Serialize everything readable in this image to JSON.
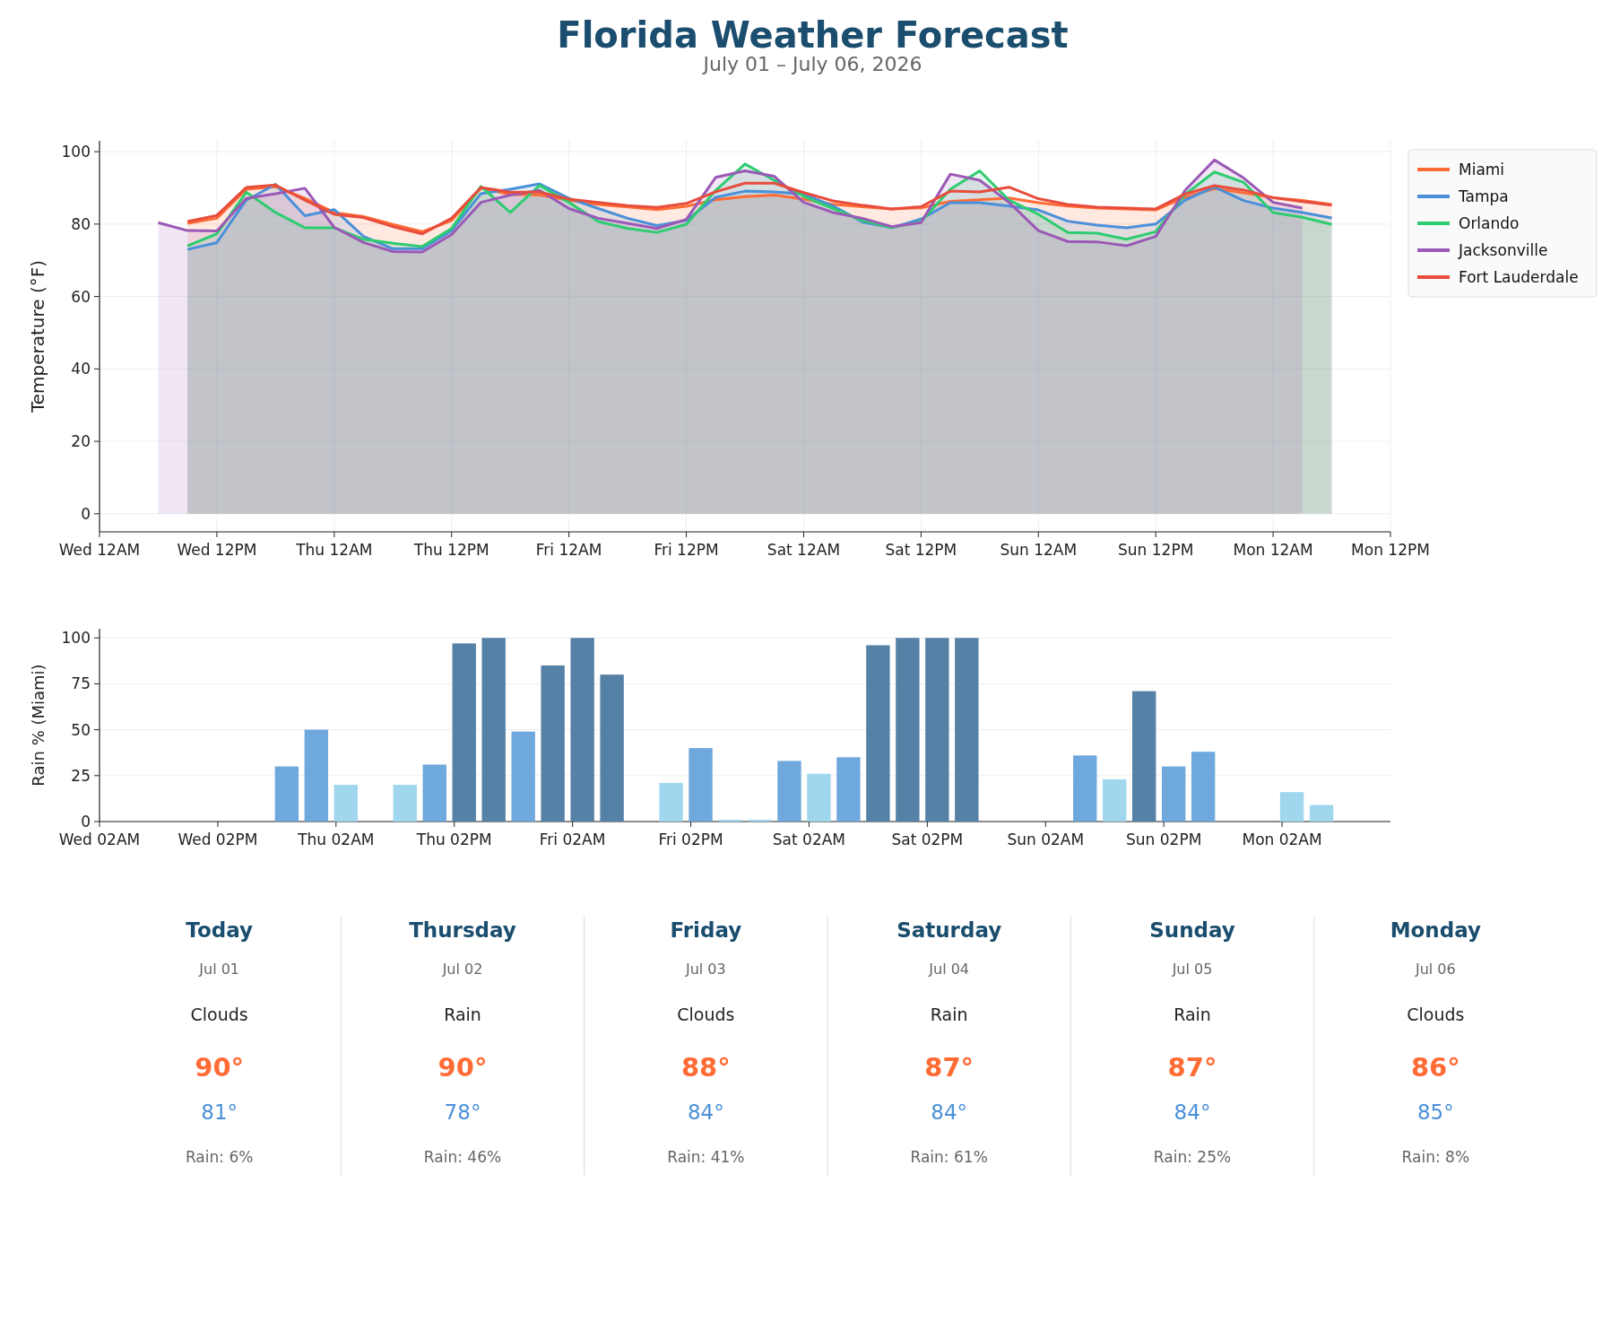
{
  "chart_data": [
    {
      "type": "area",
      "title": "Florida Weather Forecast",
      "subtitle": "July 01 – July 06, 2026",
      "ylabel": "Temperature (°F)",
      "x": [
        "2026-07-01T06:00",
        "2026-07-01T09:00",
        "2026-07-01T12:00",
        "2026-07-01T15:00",
        "2026-07-01T18:00",
        "2026-07-01T21:00",
        "2026-07-02T00:00",
        "2026-07-02T03:00",
        "2026-07-02T06:00",
        "2026-07-02T09:00",
        "2026-07-02T12:00",
        "2026-07-02T15:00",
        "2026-07-02T18:00",
        "2026-07-02T21:00",
        "2026-07-03T00:00",
        "2026-07-03T03:00",
        "2026-07-03T06:00",
        "2026-07-03T09:00",
        "2026-07-03T12:00",
        "2026-07-03T15:00",
        "2026-07-03T18:00",
        "2026-07-03T21:00",
        "2026-07-04T00:00",
        "2026-07-04T03:00",
        "2026-07-04T06:00",
        "2026-07-04T09:00",
        "2026-07-04T12:00",
        "2026-07-04T15:00",
        "2026-07-04T18:00",
        "2026-07-04T21:00",
        "2026-07-05T00:00",
        "2026-07-05T03:00",
        "2026-07-05T06:00",
        "2026-07-05T09:00",
        "2026-07-05T12:00",
        "2026-07-05T15:00",
        "2026-07-05T18:00",
        "2026-07-05T21:00",
        "2026-07-06T00:00",
        "2026-07-06T03:00",
        "2026-07-06T06:00"
      ],
      "xlim": [
        "2026-07-01T00:00",
        "2026-07-06T12:00"
      ],
      "xticks": [
        {
          "value": "2026-07-01T00:00",
          "label": "Wed 12AM"
        },
        {
          "value": "2026-07-01T12:00",
          "label": "Wed 12PM"
        },
        {
          "value": "2026-07-02T00:00",
          "label": "Thu 12AM"
        },
        {
          "value": "2026-07-02T12:00",
          "label": "Thu 12PM"
        },
        {
          "value": "2026-07-03T00:00",
          "label": "Fri 12AM"
        },
        {
          "value": "2026-07-03T12:00",
          "label": "Fri 12PM"
        },
        {
          "value": "2026-07-04T00:00",
          "label": "Sat 12AM"
        },
        {
          "value": "2026-07-04T12:00",
          "label": "Sat 12PM"
        },
        {
          "value": "2026-07-05T00:00",
          "label": "Sun 12AM"
        },
        {
          "value": "2026-07-05T12:00",
          "label": "Sun 12PM"
        },
        {
          "value": "2026-07-06T00:00",
          "label": "Mon 12AM"
        },
        {
          "value": "2026-07-06T12:00",
          "label": "Mon 12PM"
        }
      ],
      "ylim": [
        -5,
        103
      ],
      "yticks": [
        0,
        20,
        40,
        60,
        80,
        100
      ],
      "grid": true,
      "legend": "right",
      "series": [
        {
          "name": "Miami",
          "color": "#ff6b35",
          "values": [
            null,
            80.2,
            81.6,
            89.6,
            90.3,
            87.1,
            83.2,
            82.1,
            79.9,
            77.9,
            81,
            89.9,
            88.2,
            88,
            86.6,
            85.4,
            84.7,
            84,
            84.9,
            86.7,
            87.6,
            88,
            86.9,
            85.5,
            84.8,
            84.2,
            84.5,
            86.3,
            86.7,
            87.2,
            85.9,
            85,
            84.4,
            84.2,
            83.9,
            87.4,
            89.8,
            88.6,
            87.3,
            86.5,
            85.4
          ]
        },
        {
          "name": "Tampa",
          "color": "#4a90d9",
          "values": [
            null,
            73,
            74.9,
            86.6,
            91,
            82.3,
            84,
            76.6,
            73.2,
            73.2,
            78.2,
            88.4,
            89.6,
            91.1,
            87.1,
            84.3,
            81.6,
            79.6,
            81,
            87.4,
            89.1,
            88.9,
            88.3,
            85,
            80.6,
            79,
            81.4,
            85.9,
            85.9,
            85,
            83.9,
            80.8,
            79.7,
            79,
            80,
            86.6,
            90.2,
            86.5,
            84.4,
            83.2,
            81.7
          ]
        },
        {
          "name": "Orlando",
          "color": "#2ecc71",
          "values": [
            null,
            74,
            77.3,
            88.8,
            83.2,
            79,
            79,
            75.8,
            74.7,
            73.8,
            78.8,
            90.4,
            83.2,
            90.7,
            86,
            80.7,
            78.8,
            77.7,
            79.9,
            89.3,
            96.6,
            92.1,
            87.7,
            84.3,
            81,
            79,
            80.7,
            89.6,
            94.7,
            86.6,
            82.7,
            77.7,
            77.5,
            75.8,
            77.9,
            88.2,
            94.4,
            91.5,
            83.2,
            81.9,
            79.9
          ]
        },
        {
          "name": "Jacksonville",
          "color": "#9b59b6",
          "values": [
            80.4,
            78.2,
            78.1,
            87.1,
            88.4,
            89.9,
            79.1,
            74.9,
            72.4,
            72.3,
            77.1,
            86,
            88,
            89.3,
            84.3,
            81.6,
            80.2,
            78.8,
            81.3,
            92.9,
            94.7,
            93.2,
            86,
            83.2,
            81.6,
            79.3,
            80.4,
            93.8,
            92.1,
            86,
            78.2,
            75.2,
            75.1,
            74,
            76.6,
            89.3,
            97.7,
            92.7,
            86,
            84.4,
            null
          ]
        },
        {
          "name": "Fort Lauderdale",
          "type": "line",
          "color": "#e74c3c",
          "values": [
            null,
            80.7,
            82.4,
            90.1,
            90.8,
            86.6,
            82.7,
            81.8,
            79.3,
            77.3,
            81.6,
            90.1,
            88.8,
            88.8,
            86.9,
            86,
            85.1,
            84.6,
            85.7,
            88.9,
            91.3,
            91.3,
            88.7,
            86.4,
            85.2,
            84.2,
            84.8,
            89.1,
            88.9,
            90.2,
            87,
            85.4,
            84.7,
            84.4,
            84.2,
            88.3,
            90.6,
            89.4,
            87.3,
            86.2,
            85.2
          ]
        }
      ]
    },
    {
      "type": "bar",
      "ylabel": "Rain % (Miami)",
      "x": [
        "2026-07-01T09:00",
        "2026-07-01T12:00",
        "2026-07-01T15:00",
        "2026-07-01T18:00",
        "2026-07-01T21:00",
        "2026-07-02T00:00",
        "2026-07-02T03:00",
        "2026-07-02T06:00",
        "2026-07-02T09:00",
        "2026-07-02T12:00",
        "2026-07-02T15:00",
        "2026-07-02T18:00",
        "2026-07-02T21:00",
        "2026-07-03T00:00",
        "2026-07-03T03:00",
        "2026-07-03T06:00",
        "2026-07-03T09:00",
        "2026-07-03T12:00",
        "2026-07-03T15:00",
        "2026-07-03T18:00",
        "2026-07-03T21:00",
        "2026-07-04T00:00",
        "2026-07-04T03:00",
        "2026-07-04T06:00",
        "2026-07-04T09:00",
        "2026-07-04T12:00",
        "2026-07-04T15:00",
        "2026-07-04T18:00",
        "2026-07-04T21:00",
        "2026-07-05T00:00",
        "2026-07-05T03:00",
        "2026-07-05T06:00",
        "2026-07-05T09:00",
        "2026-07-05T12:00",
        "2026-07-05T15:00",
        "2026-07-05T18:00",
        "2026-07-05T21:00",
        "2026-07-06T00:00",
        "2026-07-06T03:00",
        "2026-07-06T06:00"
      ],
      "values": [
        0,
        0,
        0,
        0,
        30,
        50,
        20,
        0,
        20,
        31,
        97,
        100,
        49,
        85,
        100,
        80,
        0,
        21,
        40,
        1,
        1,
        33,
        26,
        35,
        96,
        100,
        100,
        100,
        0,
        0,
        0,
        36,
        23,
        71,
        30,
        38,
        0,
        0,
        16,
        9
      ],
      "colors": [
        "#a0d6ee",
        "#a0d6ee",
        "#a0d6ee",
        "#a0d6ee",
        "#6fa8dc",
        "#6fa8dc",
        "#a0d6ee",
        "#a0d6ee",
        "#a0d6ee",
        "#6fa8dc",
        "#5681a6",
        "#5681a6",
        "#6fa8dc",
        "#5681a6",
        "#5681a6",
        "#5681a6",
        "#a0d6ee",
        "#a0d6ee",
        "#6fa8dc",
        "#a0d6ee",
        "#a0d6ee",
        "#6fa8dc",
        "#a0d6ee",
        "#6fa8dc",
        "#5681a6",
        "#5681a6",
        "#5681a6",
        "#5681a6",
        "#a0d6ee",
        "#a0d6ee",
        "#a0d6ee",
        "#6fa8dc",
        "#a0d6ee",
        "#5681a6",
        "#6fa8dc",
        "#6fa8dc",
        "#a0d6ee",
        "#a0d6ee",
        "#a0d6ee",
        "#a0d6ee"
      ],
      "xlim": [
        "2026-07-01T02:00",
        "2026-07-06T13:00"
      ],
      "xticks": [
        {
          "value": "2026-07-01T02:00",
          "label": "Wed 02AM"
        },
        {
          "value": "2026-07-01T14:00",
          "label": "Wed 02PM"
        },
        {
          "value": "2026-07-02T02:00",
          "label": "Thu 02AM"
        },
        {
          "value": "2026-07-02T14:00",
          "label": "Thu 02PM"
        },
        {
          "value": "2026-07-03T02:00",
          "label": "Fri 02AM"
        },
        {
          "value": "2026-07-03T14:00",
          "label": "Fri 02PM"
        },
        {
          "value": "2026-07-04T02:00",
          "label": "Sat 02AM"
        },
        {
          "value": "2026-07-04T14:00",
          "label": "Sat 02PM"
        },
        {
          "value": "2026-07-05T02:00",
          "label": "Sun 02AM"
        },
        {
          "value": "2026-07-05T14:00",
          "label": "Sun 02PM"
        },
        {
          "value": "2026-07-06T02:00",
          "label": "Mon 02AM"
        }
      ],
      "ylim": [
        0,
        105
      ],
      "yticks": [
        0,
        25,
        50,
        75,
        100
      ],
      "grid": "y"
    },
    {
      "type": "other",
      "annotations": [
        "Today",
        "Jul 01",
        "Clouds",
        "90°",
        "81°",
        "Rain: 6%",
        "Thursday",
        "Jul 02",
        "Rain",
        "90°",
        "78°",
        "Rain: 46%",
        "Friday",
        "Jul 03",
        "Clouds",
        "88°",
        "84°",
        "Rain: 41%",
        "Saturday",
        "Jul 04",
        "Rain",
        "87°",
        "84°",
        "Rain: 61%",
        "Sunday",
        "Jul 05",
        "Rain",
        "87°",
        "84°",
        "Rain: 25%",
        "Monday",
        "Jul 06",
        "Clouds",
        "86°",
        "85°",
        "Rain: 8%"
      ]
    }
  ]
}
